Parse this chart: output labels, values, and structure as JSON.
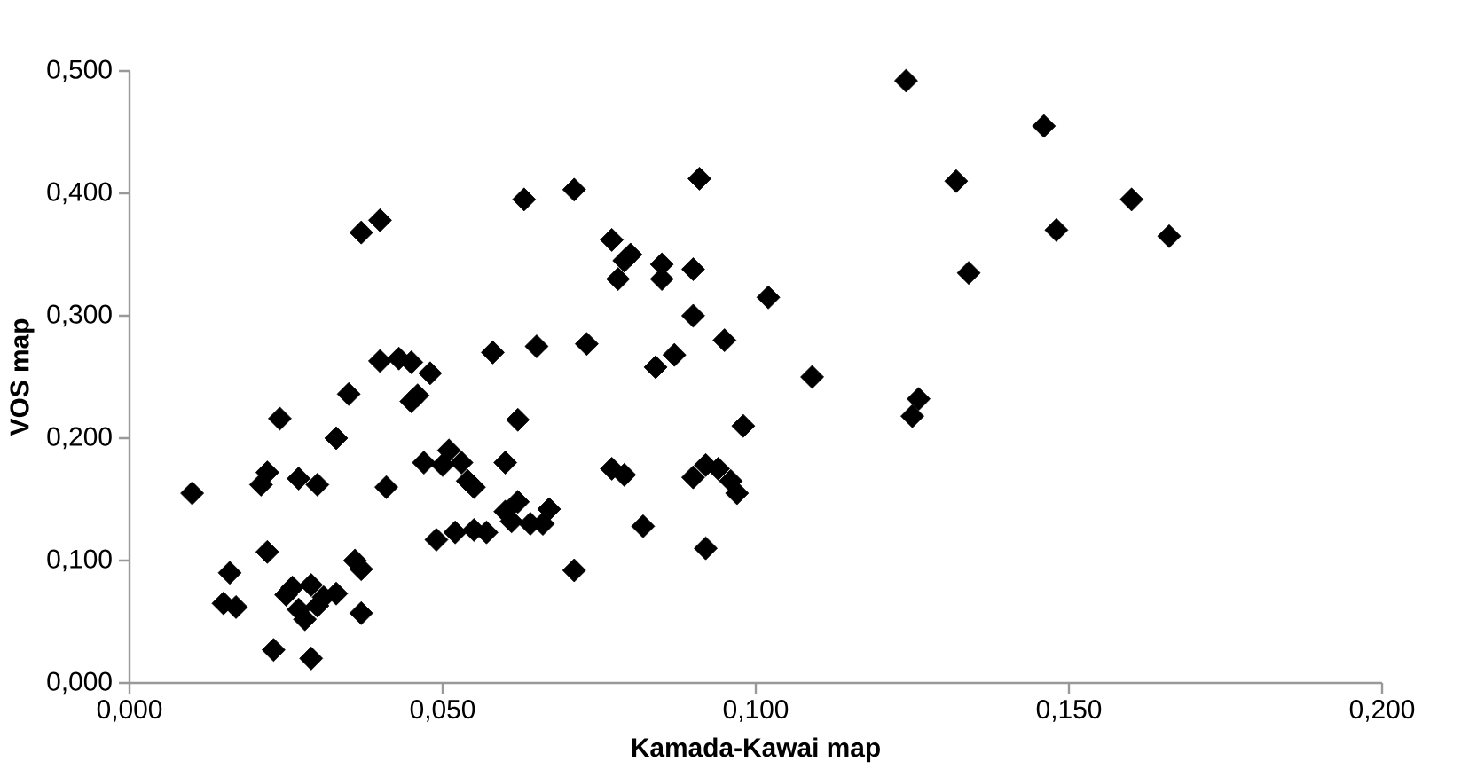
{
  "chart_data": {
    "type": "scatter",
    "xlabel": "Kamada-Kawai map",
    "ylabel": "VOS map",
    "xlim": [
      0,
      0.2
    ],
    "ylim": [
      0,
      0.5
    ],
    "xticks": [
      {
        "value": 0,
        "label": "0,000"
      },
      {
        "value": 0.05,
        "label": "0,050"
      },
      {
        "value": 0.1,
        "label": "0,100"
      },
      {
        "value": 0.15,
        "label": "0,150"
      },
      {
        "value": 0.2,
        "label": "0,200"
      }
    ],
    "yticks": [
      {
        "value": 0,
        "label": "0,000"
      },
      {
        "value": 0.1,
        "label": "0,100"
      },
      {
        "value": 0.2,
        "label": "0,200"
      },
      {
        "value": 0.3,
        "label": "0,300"
      },
      {
        "value": 0.4,
        "label": "0,400"
      },
      {
        "value": 0.5,
        "label": "0,500"
      }
    ],
    "grid": false,
    "marker": "diamond",
    "series": [
      {
        "color": "#000000",
        "x": [
          0.01,
          0.015,
          0.016,
          0.017,
          0.021,
          0.022,
          0.022,
          0.023,
          0.024,
          0.025,
          0.026,
          0.027,
          0.027,
          0.028,
          0.029,
          0.029,
          0.03,
          0.03,
          0.031,
          0.033,
          0.033,
          0.035,
          0.036,
          0.037,
          0.037,
          0.037,
          0.04,
          0.04,
          0.041,
          0.043,
          0.045,
          0.045,
          0.046,
          0.047,
          0.048,
          0.049,
          0.05,
          0.051,
          0.052,
          0.053,
          0.054,
          0.055,
          0.055,
          0.057,
          0.058,
          0.06,
          0.06,
          0.061,
          0.062,
          0.062,
          0.063,
          0.064,
          0.065,
          0.066,
          0.067,
          0.071,
          0.071,
          0.073,
          0.077,
          0.077,
          0.078,
          0.079,
          0.079,
          0.08,
          0.082,
          0.084,
          0.085,
          0.085,
          0.087,
          0.09,
          0.09,
          0.09,
          0.091,
          0.092,
          0.092,
          0.094,
          0.095,
          0.096,
          0.097,
          0.098,
          0.102,
          0.109,
          0.124,
          0.125,
          0.126,
          0.132,
          0.134,
          0.146,
          0.148,
          0.16,
          0.166
        ],
        "values": [
          0.155,
          0.065,
          0.09,
          0.062,
          0.162,
          0.172,
          0.107,
          0.027,
          0.216,
          0.072,
          0.078,
          0.06,
          0.167,
          0.052,
          0.02,
          0.08,
          0.162,
          0.063,
          0.07,
          0.073,
          0.2,
          0.236,
          0.1,
          0.093,
          0.057,
          0.368,
          0.378,
          0.263,
          0.16,
          0.265,
          0.262,
          0.23,
          0.235,
          0.18,
          0.253,
          0.117,
          0.178,
          0.19,
          0.123,
          0.18,
          0.165,
          0.16,
          0.125,
          0.123,
          0.27,
          0.14,
          0.18,
          0.132,
          0.215,
          0.148,
          0.395,
          0.13,
          0.275,
          0.13,
          0.142,
          0.092,
          0.403,
          0.277,
          0.362,
          0.175,
          0.33,
          0.345,
          0.17,
          0.35,
          0.128,
          0.258,
          0.342,
          0.33,
          0.268,
          0.168,
          0.3,
          0.338,
          0.412,
          0.178,
          0.11,
          0.175,
          0.28,
          0.165,
          0.155,
          0.21,
          0.315,
          0.25,
          0.492,
          0.218,
          0.232,
          0.41,
          0.335,
          0.455,
          0.37,
          0.395,
          0.365
        ]
      }
    ]
  }
}
